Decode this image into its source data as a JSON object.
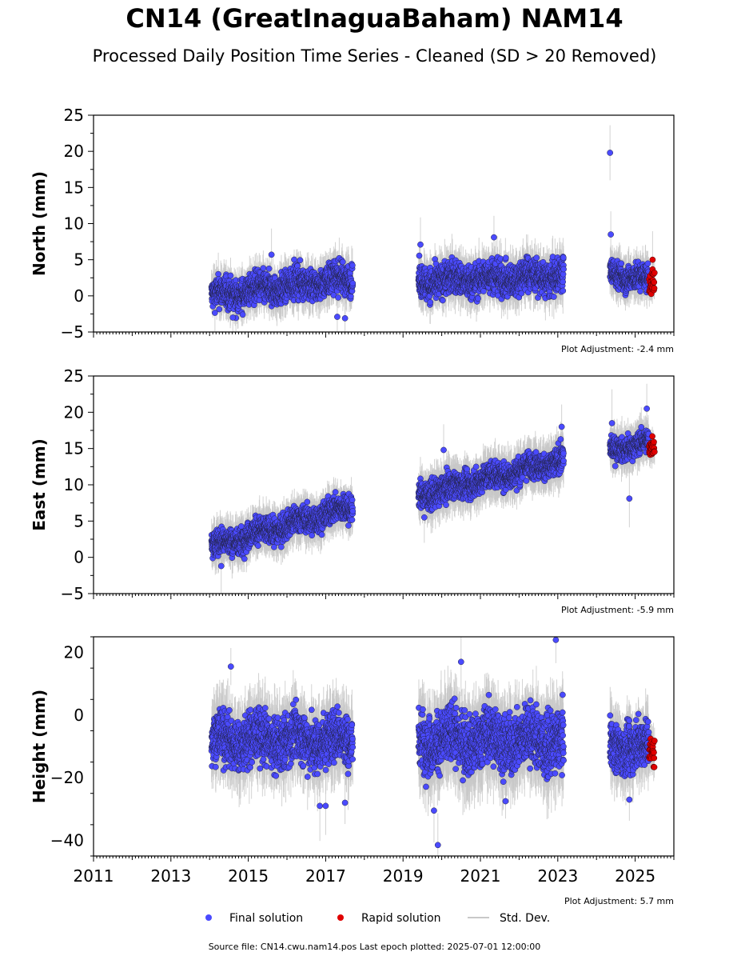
{
  "title": "CN14 (GreatInaguaBaham) NAM14",
  "subtitle": "Processed Daily Position Time Series - Cleaned (SD > 20 Removed)",
  "footer": "Source file: CN14.cwu.nam14.pos  Last epoch plotted: 2025-07-01 12:00:00",
  "colors": {
    "final": "#4a4aff",
    "rapid": "#e00000",
    "std": "#c8c8c8"
  },
  "legend": {
    "final": "Final solution",
    "rapid": "Rapid solution",
    "std": "Std. Dev."
  },
  "chart_data": [
    {
      "type": "scatter",
      "ylabel": "North (mm)",
      "xlim": [
        2011,
        2026
      ],
      "ylim": [
        -5,
        25
      ],
      "yticks": [
        -5,
        0,
        5,
        10,
        15,
        20,
        25
      ],
      "adjustment": "Plot Adjustment: -2.4 mm",
      "series": [
        {
          "name": "Final solution",
          "color": "#4a4aff",
          "segments": [
            {
              "x0": 2014.05,
              "x1": 2017.7,
              "y0": 0.0,
              "y1": 2.5,
              "spread": 1.4,
              "sd": 2.0
            },
            {
              "x0": 2019.4,
              "x1": 2023.15,
              "y0": 2.0,
              "y1": 2.8,
              "spread": 1.5,
              "sd": 2.2
            },
            {
              "x0": 2024.35,
              "x1": 2025.35,
              "y0": 3.2,
              "y1": 2.2,
              "spread": 1.2,
              "sd": 2.0
            }
          ],
          "outliers": [
            [
              2024.35,
              19.8
            ],
            [
              2024.37,
              8.5
            ],
            [
              2019.45,
              7.1
            ],
            [
              2021.35,
              8.1
            ],
            [
              2015.6,
              5.7
            ],
            [
              2014.6,
              -3.0
            ],
            [
              2017.3,
              -2.9
            ],
            [
              2017.5,
              -3.1
            ]
          ]
        },
        {
          "name": "Rapid solution",
          "color": "#e00000",
          "segments": [
            {
              "x0": 2025.36,
              "x1": 2025.5,
              "y0": 2.0,
              "y1": 2.0,
              "spread": 1.2,
              "sd": 1.5
            }
          ],
          "outliers": [
            [
              2025.45,
              5.0
            ]
          ]
        }
      ]
    },
    {
      "type": "scatter",
      "ylabel": "East (mm)",
      "xlim": [
        2011,
        2026
      ],
      "ylim": [
        -5,
        25
      ],
      "yticks": [
        -5,
        0,
        5,
        10,
        15,
        20,
        25
      ],
      "adjustment": "Plot Adjustment: -5.9 mm",
      "series": [
        {
          "name": "Final solution",
          "color": "#4a4aff",
          "segments": [
            {
              "x0": 2014.05,
              "x1": 2017.7,
              "y0": 1.5,
              "y1": 7.0,
              "spread": 1.2,
              "sd": 2.0
            },
            {
              "x0": 2019.4,
              "x1": 2023.15,
              "y0": 8.5,
              "y1": 13.5,
              "spread": 1.2,
              "sd": 2.2
            },
            {
              "x0": 2024.35,
              "x1": 2025.35,
              "y0": 14.8,
              "y1": 15.8,
              "spread": 1.0,
              "sd": 2.0
            }
          ],
          "outliers": [
            [
              2024.4,
              18.5
            ],
            [
              2025.3,
              20.5
            ],
            [
              2024.85,
              8.1
            ],
            [
              2023.1,
              18.0
            ],
            [
              2019.55,
              5.5
            ],
            [
              2014.3,
              -1.2
            ],
            [
              2020.05,
              14.8
            ]
          ]
        },
        {
          "name": "Rapid solution",
          "color": "#e00000",
          "segments": [
            {
              "x0": 2025.36,
              "x1": 2025.5,
              "y0": 15.3,
              "y1": 15.3,
              "spread": 0.9,
              "sd": 1.5
            }
          ],
          "outliers": []
        }
      ]
    },
    {
      "type": "scatter",
      "ylabel": "Height (mm)",
      "xlim": [
        2011,
        2026
      ],
      "ylim": [
        -45,
        25
      ],
      "yticks": [
        -40,
        -20,
        0,
        20
      ],
      "adjustment": "Plot Adjustment: 5.7 mm",
      "series": [
        {
          "name": "Final solution",
          "color": "#4a4aff",
          "segments": [
            {
              "x0": 2014.05,
              "x1": 2017.7,
              "y0": -8.0,
              "y1": -8.0,
              "spread": 5.5,
              "sd": 8.0
            },
            {
              "x0": 2019.4,
              "x1": 2023.15,
              "y0": -8.0,
              "y1": -8.0,
              "spread": 6.0,
              "sd": 9.0
            },
            {
              "x0": 2024.35,
              "x1": 2025.35,
              "y0": -10.0,
              "y1": -10.0,
              "spread": 5.0,
              "sd": 7.0
            }
          ],
          "outliers": [
            [
              2022.95,
              24.0
            ],
            [
              2020.5,
              17.0
            ],
            [
              2014.55,
              15.5
            ],
            [
              2019.9,
              -41.5
            ],
            [
              2019.8,
              -30.5
            ],
            [
              2016.85,
              -29.0
            ],
            [
              2017.0,
              -29.0
            ],
            [
              2017.5,
              -28.0
            ],
            [
              2021.65,
              -27.5
            ],
            [
              2024.85,
              -27.0
            ]
          ]
        },
        {
          "name": "Rapid solution",
          "color": "#e00000",
          "segments": [
            {
              "x0": 2025.36,
              "x1": 2025.5,
              "y0": -12.0,
              "y1": -12.0,
              "spread": 3.5,
              "sd": 5.0
            }
          ],
          "outliers": []
        }
      ]
    }
  ],
  "xticks": [
    "2011",
    "2013",
    "2015",
    "2017",
    "2019",
    "2021",
    "2023",
    "2025"
  ]
}
